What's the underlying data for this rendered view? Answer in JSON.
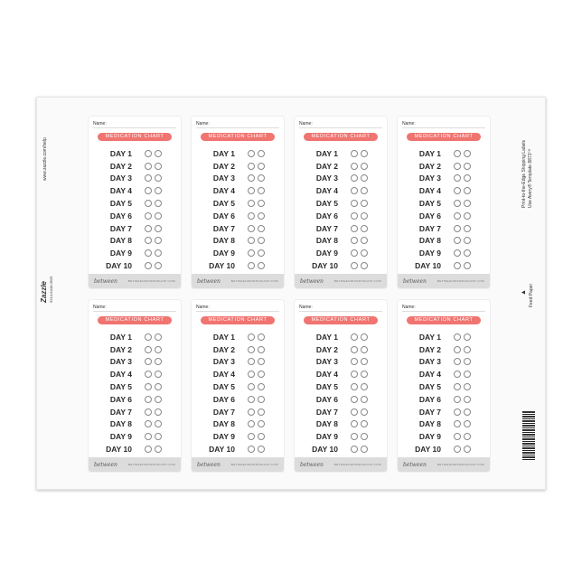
{
  "sheet": {
    "left_help": "www.zazzle.com/help",
    "brand": "Zazzle",
    "brand_code": "9214-9440-0629",
    "right_info_1": "Print-to-the-Edge Shipping Labels",
    "right_info_2": "Use Avery® Template 8873™",
    "feed_paper": "Feed Paper"
  },
  "label": {
    "name_label": "Name:",
    "title": "MEDICATION CHART",
    "days": [
      "DAY 1",
      "DAY 2",
      "DAY 3",
      "DAY 4",
      "DAY 5",
      "DAY 6",
      "DAY 7",
      "DAY 8",
      "DAY 9",
      "DAY 10"
    ],
    "footer_logo": "between",
    "footer_url": "BETWEENWORDSSHOP.COM"
  },
  "colors": {
    "accent": "#f07470",
    "footer": "#dcdcdc"
  },
  "label_count": 8
}
